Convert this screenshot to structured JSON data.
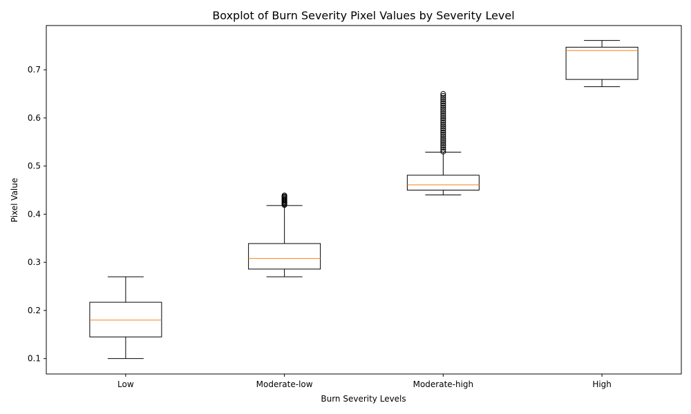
{
  "chart_data": {
    "type": "boxplot",
    "title": "Boxplot of Burn Severity Pixel Values by Severity Level",
    "xlabel": "Burn Severity Levels",
    "ylabel": "Pixel Value",
    "ylim": [
      0.068,
      0.792
    ],
    "yticks": [
      0.1,
      0.2,
      0.3,
      0.4,
      0.5,
      0.6,
      0.7
    ],
    "ytick_labels": [
      "0.1",
      "0.2",
      "0.3",
      "0.4",
      "0.5",
      "0.6",
      "0.7"
    ],
    "grid": false,
    "categories": [
      "Low",
      "Moderate-low",
      "Moderate-high",
      "High"
    ],
    "boxes": [
      {
        "category": "Low",
        "whisker_low": 0.1,
        "q1": 0.145,
        "median": 0.18,
        "q3": 0.217,
        "whisker_high": 0.27,
        "fliers": []
      },
      {
        "category": "Moderate-low",
        "whisker_low": 0.27,
        "q1": 0.286,
        "median": 0.308,
        "q3": 0.339,
        "whisker_high": 0.418,
        "fliers": [
          0.419,
          0.421,
          0.423,
          0.425,
          0.427,
          0.429,
          0.431,
          0.433,
          0.435,
          0.437,
          0.439
        ]
      },
      {
        "category": "Moderate-high",
        "whisker_low": 0.44,
        "q1": 0.45,
        "median": 0.461,
        "q3": 0.481,
        "whisker_high": 0.529,
        "fliers": [
          0.53,
          0.534,
          0.538,
          0.542,
          0.546,
          0.55,
          0.554,
          0.558,
          0.562,
          0.566,
          0.57,
          0.574,
          0.578,
          0.582,
          0.586,
          0.59,
          0.594,
          0.598,
          0.602,
          0.606,
          0.61,
          0.614,
          0.618,
          0.622,
          0.626,
          0.63,
          0.634,
          0.638,
          0.642,
          0.646,
          0.65
        ]
      },
      {
        "category": "High",
        "whisker_low": 0.665,
        "q1": 0.68,
        "median": 0.74,
        "q3": 0.747,
        "whisker_high": 0.761,
        "fliers": []
      }
    ],
    "colors": {
      "box": "#000000",
      "median": "#ff7f0e",
      "whisker": "#000000",
      "flier": "#000000"
    }
  }
}
